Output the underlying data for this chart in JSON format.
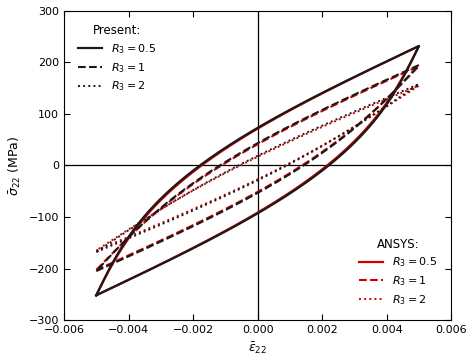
{
  "xlabel": "$\\bar{\\epsilon}_{22}$",
  "ylabel": "$\\bar{\\sigma}_{22}$ (MPa)",
  "xlim": [
    -0.006,
    0.006
  ],
  "ylim": [
    -300,
    300
  ],
  "xticks": [
    -0.006,
    -0.004,
    -0.002,
    0.0,
    0.002,
    0.004,
    0.006
  ],
  "yticks": [
    -300,
    -200,
    -100,
    0,
    100,
    200,
    300
  ],
  "black_color": "#1a1a1a",
  "red_color": "#cc0000",
  "present_label": "Present:",
  "ansys_label": "ANSYS:",
  "r3_05_label": "$R_3 = 0.5$",
  "r3_1_label": "$R_3 = 1$",
  "r3_2_label": "$R_3 = 2$",
  "loops_present": [
    {
      "r3": 0.5,
      "eps_amp": 0.005,
      "sig_max": 232,
      "sig_min": -252,
      "bow_load": 0.002,
      "bow_unload": 0.002
    },
    {
      "r3": 1,
      "eps_amp": 0.005,
      "sig_max": 195,
      "sig_min": -205,
      "bow_load": 0.0013,
      "bow_unload": 0.0013
    },
    {
      "r3": 2,
      "eps_amp": 0.005,
      "sig_max": 158,
      "sig_min": -168,
      "bow_load": 0.00075,
      "bow_unload": 0.00075
    }
  ],
  "loops_ansys": [
    {
      "r3": 0.5,
      "eps_amp": 0.005,
      "sig_max": 232,
      "sig_min": -252,
      "bow_load": 0.00195,
      "bow_unload": 0.00195
    },
    {
      "r3": 1,
      "eps_amp": 0.005,
      "sig_max": 193,
      "sig_min": -203,
      "bow_load": 0.00125,
      "bow_unload": 0.00125
    },
    {
      "r3": 2,
      "eps_amp": 0.005,
      "sig_max": 155,
      "sig_min": -165,
      "bow_load": 0.0007,
      "bow_unload": 0.0007
    }
  ]
}
